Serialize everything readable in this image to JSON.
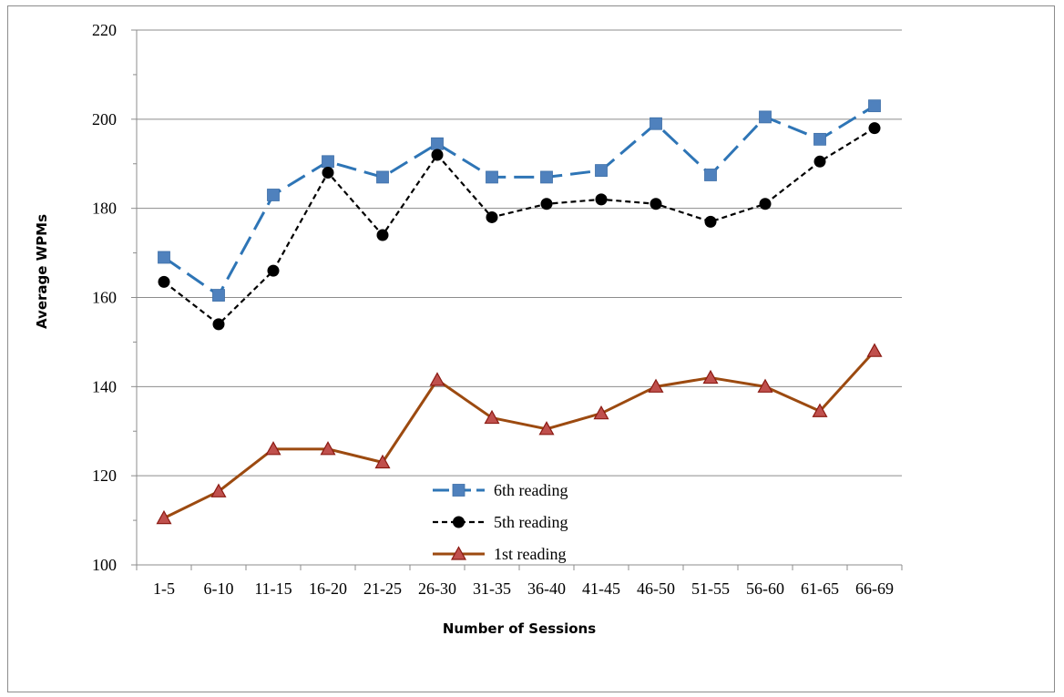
{
  "chart_data": {
    "type": "line",
    "title": "",
    "xlabel": "Number of Sessions",
    "ylabel": "Average WPMs",
    "ylim": [
      100,
      220
    ],
    "yticks": [
      100,
      120,
      140,
      160,
      180,
      200,
      220
    ],
    "grid": "horizontal",
    "legend": "bottom-center",
    "categories": [
      "1-5",
      "6-10",
      "11-15",
      "16-20",
      "21-25",
      "26-30",
      "31-35",
      "36-40",
      "41-45",
      "46-50",
      "51-55",
      "56-60",
      "61-65",
      "66-69"
    ],
    "series": [
      {
        "name": "6th reading",
        "color": "#2E75B6",
        "marker": "square",
        "marker_color": "#4F81BD",
        "line_style": "long-dash",
        "values": [
          169,
          160.5,
          183,
          190.5,
          187,
          194.5,
          187,
          187,
          188.5,
          199,
          187.5,
          200.5,
          195.5,
          203
        ]
      },
      {
        "name": "5th reading",
        "color": "#000000",
        "marker": "circle",
        "marker_color": "#000000",
        "line_style": "short-dash",
        "values": [
          163.5,
          154,
          166,
          188,
          174,
          192,
          178,
          181,
          182,
          181,
          177,
          181,
          190.5,
          198
        ]
      },
      {
        "name": "1st reading",
        "color": "#9C4A10",
        "marker": "triangle",
        "marker_color": "#C0504D",
        "line_style": "solid",
        "values": [
          110.5,
          116.5,
          126,
          126,
          123,
          141.5,
          133,
          130.5,
          134,
          140,
          142,
          140,
          134.5,
          148
        ]
      }
    ]
  }
}
